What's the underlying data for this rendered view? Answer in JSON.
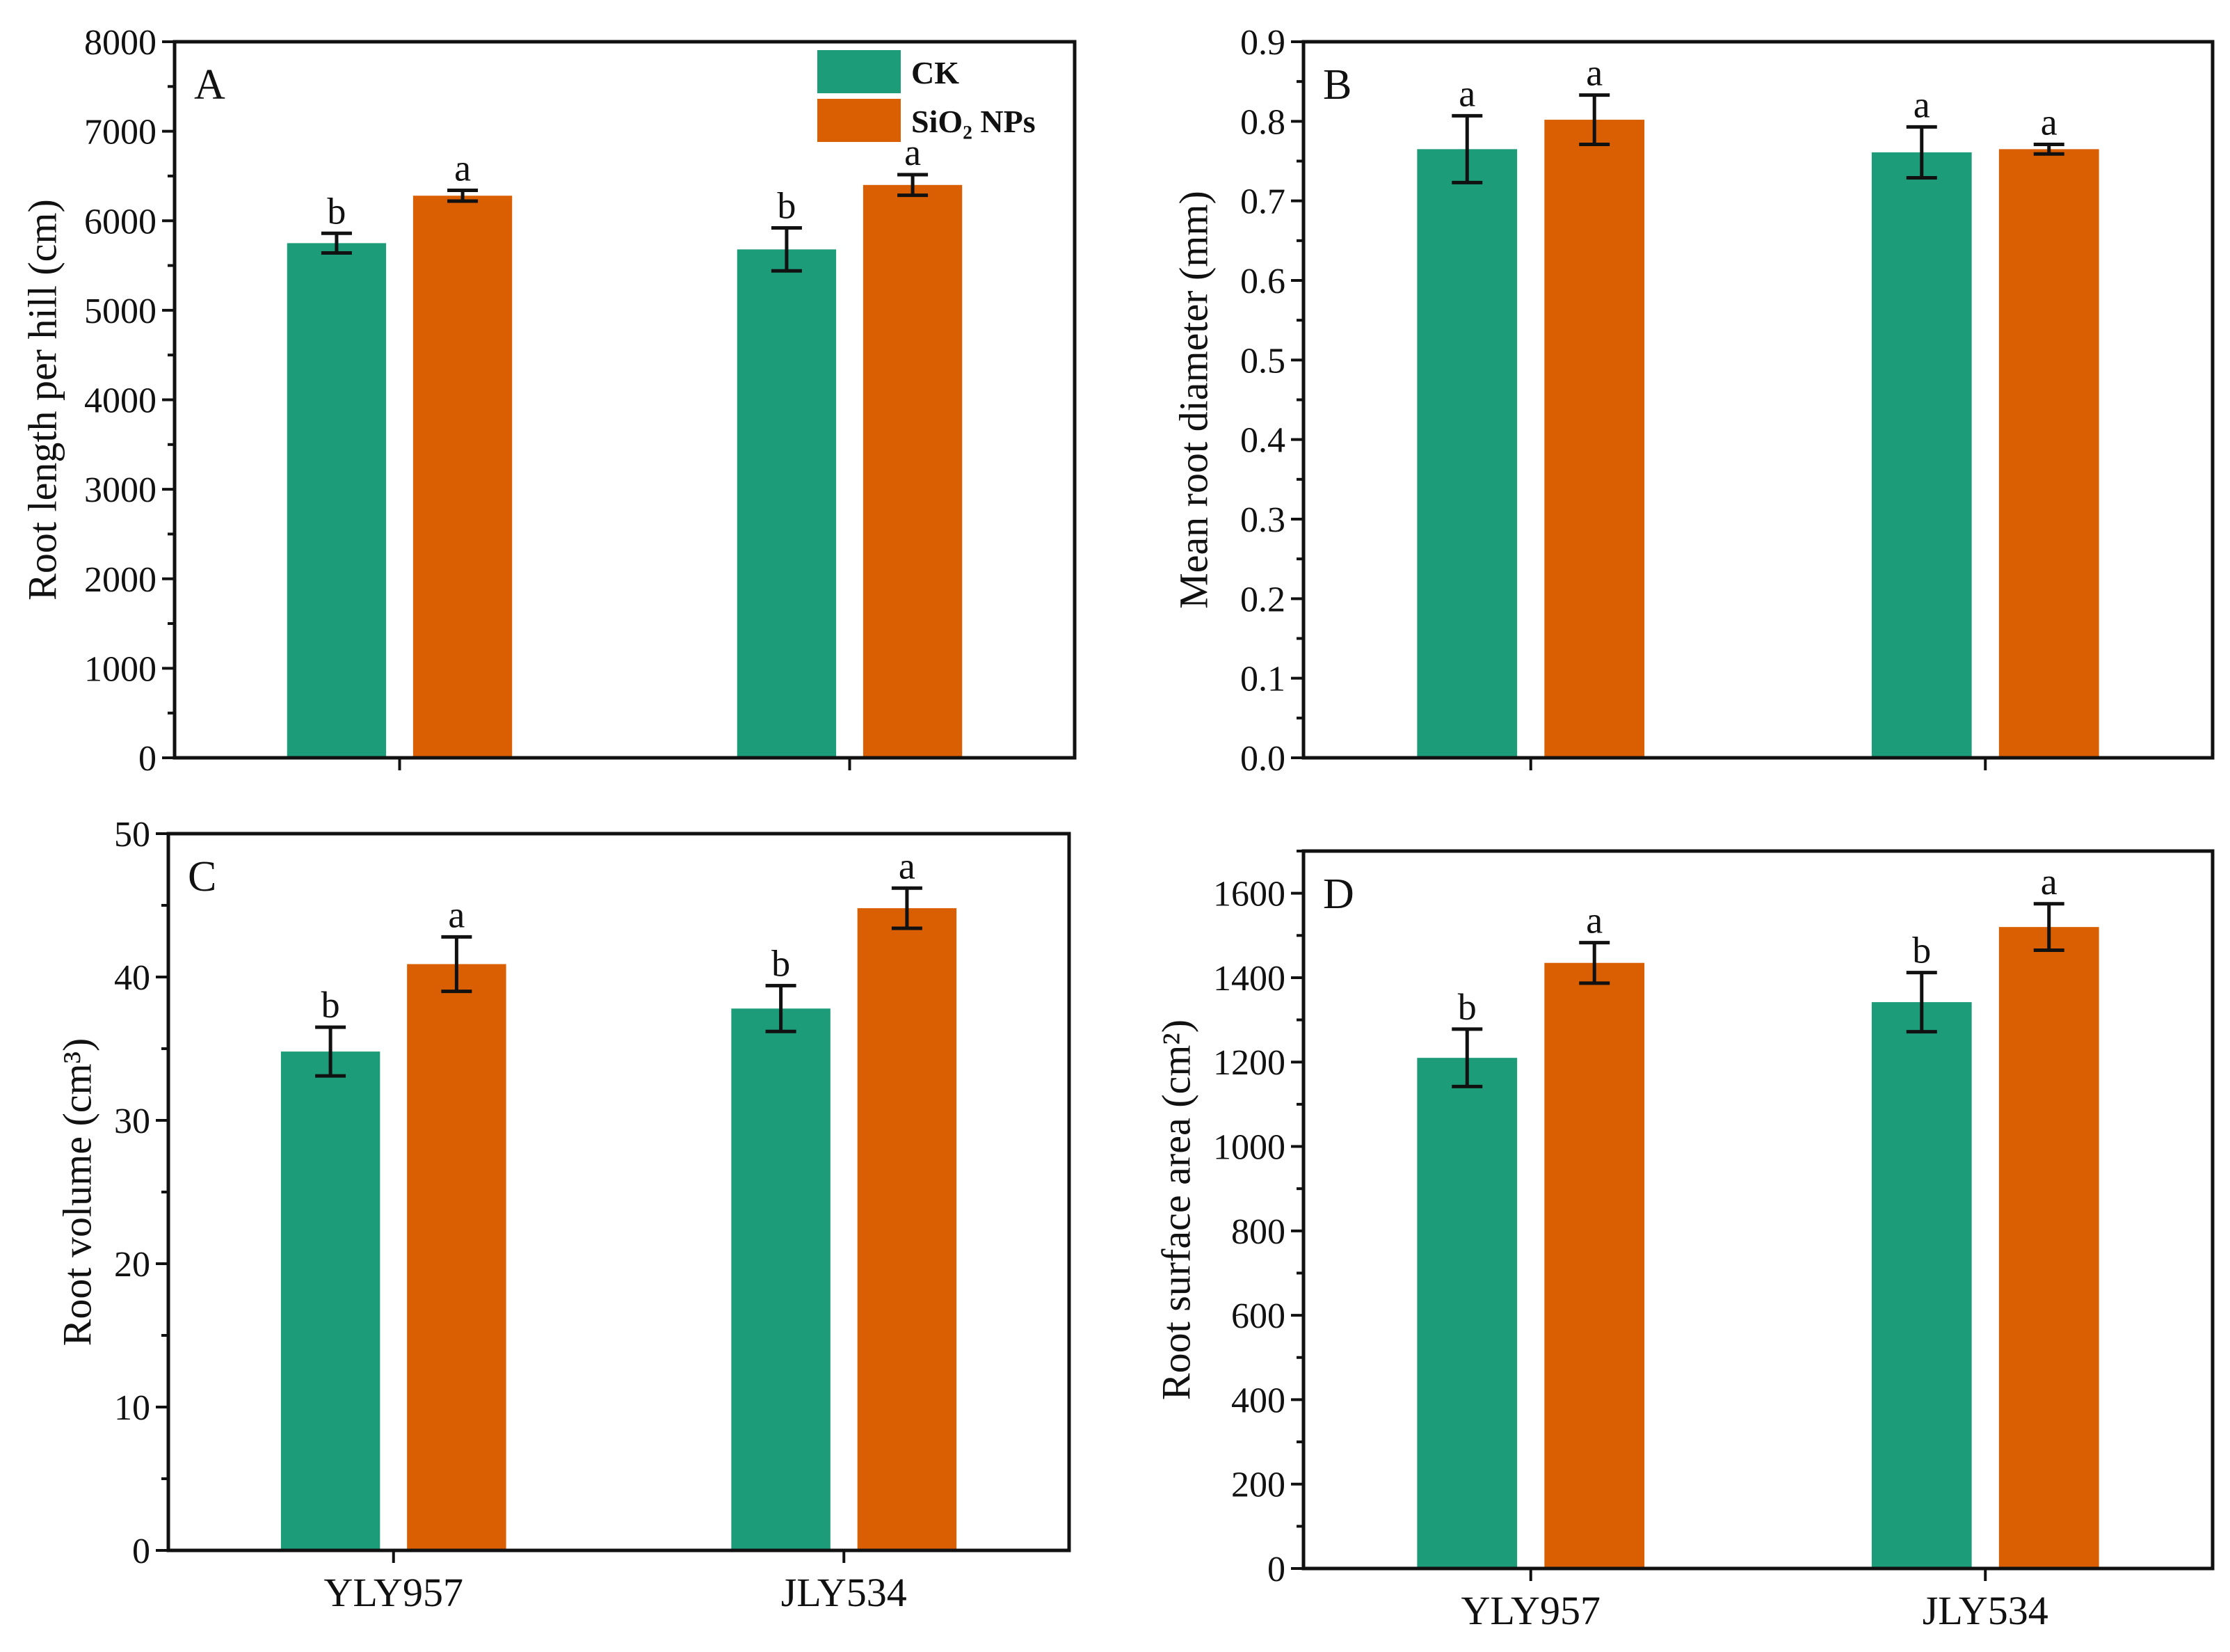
{
  "colors": {
    "CK": "#1c9c78",
    "SiO2": "#d95f02",
    "axis": "#111111"
  },
  "legend": {
    "position": "top-right",
    "items": [
      "CK",
      "SiO₂ NPs"
    ]
  },
  "chart_data": [
    {
      "type": "bar",
      "panel": "A",
      "categories": [
        "YLY957",
        "JLY534"
      ],
      "show_category_labels": false,
      "ylabel": "Root length per hill (cm)",
      "ylim": [
        0,
        8000
      ],
      "yticks": [
        "0",
        "1000",
        "2000",
        "3000",
        "4000",
        "5000",
        "6000",
        "7000",
        "8000"
      ],
      "ytick_values": [
        0,
        1000,
        2000,
        3000,
        4000,
        5000,
        6000,
        7000,
        8000
      ],
      "series": [
        {
          "name": "CK",
          "values": [
            5750,
            5680
          ],
          "errors": [
            110,
            240
          ],
          "letters": [
            "b",
            "b"
          ]
        },
        {
          "name": "SiO₂ NPs",
          "values": [
            6280,
            6400
          ],
          "errors": [
            60,
            115
          ],
          "letters": [
            "a",
            "a"
          ]
        }
      ]
    },
    {
      "type": "bar",
      "panel": "B",
      "categories": [
        "YLY957",
        "JLY534"
      ],
      "show_category_labels": false,
      "ylabel": "Mean root diameter (mm)",
      "ylim": [
        0,
        0.9
      ],
      "yticks": [
        "0.0",
        "0.1",
        "0.2",
        "0.3",
        "0.4",
        "0.5",
        "0.6",
        "0.7",
        "0.8",
        "0.9"
      ],
      "ytick_values": [
        0,
        0.1,
        0.2,
        0.3,
        0.4,
        0.5,
        0.6,
        0.7,
        0.8,
        0.9
      ],
      "series": [
        {
          "name": "CK",
          "values": [
            0.765,
            0.761
          ],
          "errors": [
            0.042,
            0.032
          ],
          "letters": [
            "a",
            "a"
          ]
        },
        {
          "name": "SiO₂ NPs",
          "values": [
            0.802,
            0.765
          ],
          "errors": [
            0.031,
            0.006
          ],
          "letters": [
            "a",
            "a"
          ]
        }
      ]
    },
    {
      "type": "bar",
      "panel": "C",
      "categories": [
        "YLY957",
        "JLY534"
      ],
      "show_category_labels": true,
      "ylabel": "Root volume (cm³)",
      "ylim": [
        0,
        50
      ],
      "yticks": [
        "0",
        "10",
        "20",
        "30",
        "40",
        "50"
      ],
      "ytick_values": [
        0,
        10,
        20,
        30,
        40,
        50
      ],
      "series": [
        {
          "name": "CK",
          "values": [
            34.8,
            37.8
          ],
          "errors": [
            1.7,
            1.6
          ],
          "letters": [
            "b",
            "b"
          ]
        },
        {
          "name": "SiO₂ NPs",
          "values": [
            40.9,
            44.8
          ],
          "errors": [
            1.9,
            1.4
          ],
          "letters": [
            "a",
            "a"
          ]
        }
      ]
    },
    {
      "type": "bar",
      "panel": "D",
      "categories": [
        "YLY957",
        "JLY534"
      ],
      "show_category_labels": true,
      "ylabel": "Root surface area (cm²)",
      "ylim": [
        0,
        1700
      ],
      "yticks": [
        "0",
        "200",
        "400",
        "600",
        "800",
        "1000",
        "1200",
        "1400",
        "1600"
      ],
      "ytick_values": [
        0,
        200,
        400,
        600,
        800,
        1000,
        1200,
        1400,
        1600
      ],
      "series": [
        {
          "name": "CK",
          "values": [
            1210,
            1342
          ],
          "errors": [
            68,
            70
          ],
          "letters": [
            "b",
            "b"
          ]
        },
        {
          "name": "SiO₂ NPs",
          "values": [
            1435,
            1520
          ],
          "errors": [
            48,
            55
          ],
          "letters": [
            "a",
            "a"
          ]
        }
      ]
    }
  ]
}
